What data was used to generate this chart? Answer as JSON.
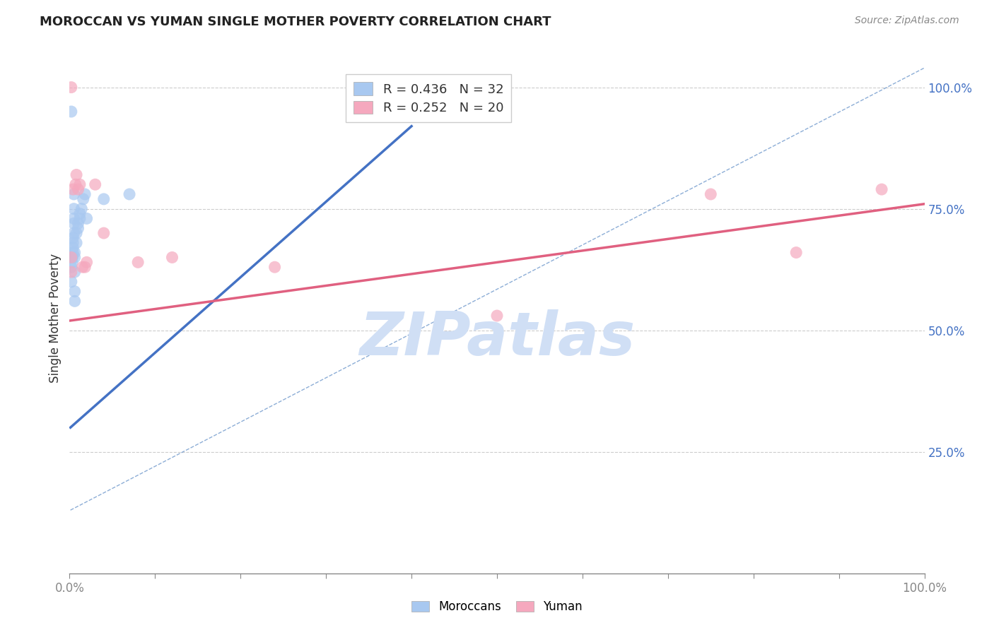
{
  "title": "MOROCCAN VS YUMAN SINGLE MOTHER POVERTY CORRELATION CHART",
  "source": "Source: ZipAtlas.com",
  "ylabel": "Single Mother Poverty",
  "xlim": [
    0,
    1
  ],
  "ylim": [
    0,
    1.05
  ],
  "moroccan_R": 0.436,
  "moroccan_N": 32,
  "yuman_R": 0.252,
  "yuman_N": 20,
  "moroccan_color": "#A8C8F0",
  "yuman_color": "#F5A8BE",
  "moroccan_line_color": "#4472C4",
  "yuman_line_color": "#E06080",
  "ref_line_color": "#7099CC",
  "background_color": "#FFFFFF",
  "grid_color": "#CCCCCC",
  "moroccan_x": [
    0.002,
    0.002,
    0.003,
    0.003,
    0.003,
    0.004,
    0.004,
    0.004,
    0.004,
    0.005,
    0.005,
    0.005,
    0.005,
    0.005,
    0.006,
    0.006,
    0.006,
    0.006,
    0.006,
    0.008,
    0.008,
    0.01,
    0.01,
    0.012,
    0.012,
    0.014,
    0.016,
    0.018,
    0.02,
    0.04,
    0.07,
    0.002
  ],
  "moroccan_y": [
    0.6,
    0.63,
    0.64,
    0.65,
    0.65,
    0.66,
    0.67,
    0.68,
    0.69,
    0.7,
    0.72,
    0.73,
    0.75,
    0.78,
    0.56,
    0.58,
    0.62,
    0.65,
    0.66,
    0.68,
    0.7,
    0.71,
    0.72,
    0.73,
    0.74,
    0.75,
    0.77,
    0.78,
    0.73,
    0.77,
    0.78,
    0.95
  ],
  "yuman_x": [
    0.002,
    0.002,
    0.002,
    0.004,
    0.007,
    0.008,
    0.01,
    0.012,
    0.015,
    0.018,
    0.02,
    0.03,
    0.04,
    0.08,
    0.12,
    0.24,
    0.5,
    0.75,
    0.85,
    0.95
  ],
  "yuman_y": [
    0.62,
    0.65,
    1.0,
    0.79,
    0.8,
    0.82,
    0.79,
    0.8,
    0.63,
    0.63,
    0.64,
    0.8,
    0.7,
    0.64,
    0.65,
    0.63,
    0.53,
    0.78,
    0.66,
    0.79
  ],
  "moroccan_trend_x": [
    0.001,
    0.4
  ],
  "moroccan_trend_y": [
    0.3,
    0.92
  ],
  "yuman_trend_x": [
    0.001,
    1.0
  ],
  "yuman_trend_y": [
    0.52,
    0.76
  ],
  "ref_line_x": [
    0.001,
    1.0
  ],
  "ref_line_y": [
    0.13,
    1.04
  ],
  "watermark_text": "ZIPatlas",
  "watermark_color": "#D0DFF5",
  "right_tick_color": "#4472C4",
  "title_fontsize": 13,
  "source_fontsize": 10,
  "legend_fontsize": 13
}
